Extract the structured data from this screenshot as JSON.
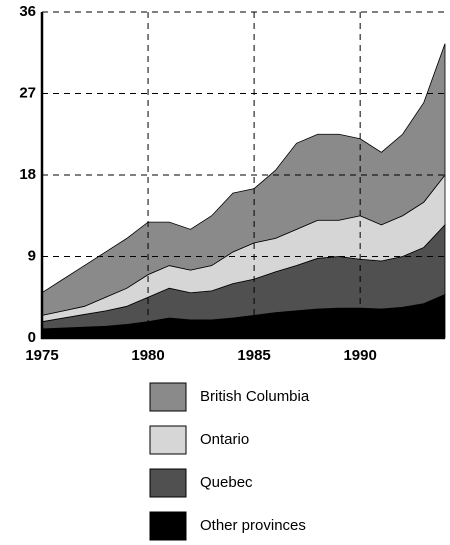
{
  "chart_data": {
    "type": "stacked-area",
    "x": [
      1975,
      1976,
      1977,
      1978,
      1979,
      1980,
      1981,
      1982,
      1983,
      1984,
      1985,
      1986,
      1987,
      1988,
      1989,
      1990,
      1991,
      1992,
      1993,
      1994
    ],
    "xlim": [
      1975,
      1994
    ],
    "xticks": [
      1975,
      1980,
      1985,
      1990
    ],
    "ylim": [
      0,
      36
    ],
    "yticks": [
      0,
      9,
      18,
      27,
      36
    ],
    "grid": true,
    "series": [
      {
        "name": "British Columbia",
        "color": "#8a8a8a",
        "values": [
          2.5,
          3.5,
          4.5,
          5,
          5.5,
          5.8,
          4.8,
          4.5,
          5.5,
          6.5,
          6,
          7.5,
          9.5,
          9.5,
          9.5,
          8.5,
          8,
          9,
          11,
          14.5
        ]
      },
      {
        "name": "Ontario",
        "color": "#d6d6d6",
        "values": [
          0.7,
          0.8,
          0.9,
          1.5,
          2,
          2.5,
          2.5,
          2.5,
          2.8,
          3.5,
          4,
          3.7,
          4,
          4.2,
          4,
          4.8,
          4,
          4.5,
          5,
          5.5
        ]
      },
      {
        "name": "Quebec",
        "color": "#505050",
        "values": [
          0.8,
          1.1,
          1.4,
          1.7,
          2,
          2.7,
          3.3,
          3,
          3.2,
          3.8,
          4,
          4.5,
          5,
          5.6,
          5.7,
          5.4,
          5.3,
          5.6,
          6.2,
          7.7
        ]
      },
      {
        "name": "Other provinces",
        "color": "#000000",
        "values": [
          1,
          1.1,
          1.2,
          1.3,
          1.5,
          1.8,
          2.2,
          2,
          2,
          2.2,
          2.5,
          2.8,
          3,
          3.2,
          3.3,
          3.3,
          3.2,
          3.4,
          3.8,
          4.8
        ]
      }
    ]
  }
}
